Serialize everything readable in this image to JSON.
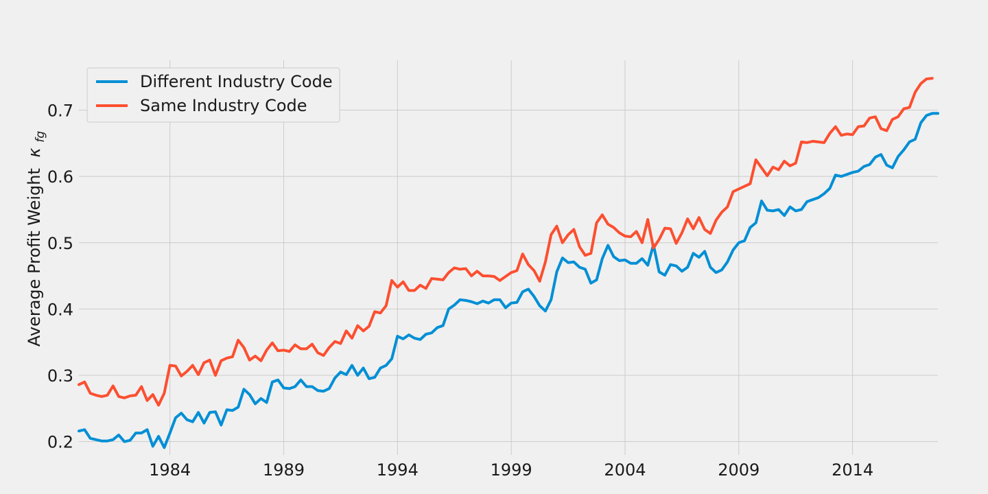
{
  "chart_data": {
    "type": "line",
    "title": "",
    "xlabel": "",
    "ylabel": "Average Profit Weight",
    "ylabel_symbol": "κ",
    "ylabel_subscript": "fg",
    "xlim": [
      1980.0,
      2017.75
    ],
    "ylim": [
      0.18,
      0.775
    ],
    "xticks": [
      1984,
      1989,
      1994,
      1999,
      2004,
      2009,
      2014
    ],
    "yticks": [
      0.2,
      0.3,
      0.4,
      0.5,
      0.6,
      0.7
    ],
    "grid": true,
    "legend_position": "top-left",
    "x_frequency": "quarterly",
    "x_start": "1980Q1",
    "series": [
      {
        "name": "Different Industry Code",
        "color": "#008fd5",
        "values": [
          0.216,
          0.218,
          0.205,
          0.203,
          0.201,
          0.201,
          0.203,
          0.21,
          0.2,
          0.202,
          0.213,
          0.213,
          0.218,
          0.193,
          0.208,
          0.191,
          0.213,
          0.236,
          0.243,
          0.233,
          0.23,
          0.244,
          0.228,
          0.244,
          0.245,
          0.225,
          0.248,
          0.247,
          0.252,
          0.279,
          0.271,
          0.257,
          0.265,
          0.259,
          0.29,
          0.293,
          0.281,
          0.28,
          0.283,
          0.293,
          0.283,
          0.283,
          0.277,
          0.276,
          0.28,
          0.296,
          0.305,
          0.301,
          0.315,
          0.3,
          0.311,
          0.295,
          0.297,
          0.311,
          0.315,
          0.325,
          0.359,
          0.355,
          0.361,
          0.356,
          0.354,
          0.362,
          0.364,
          0.372,
          0.375,
          0.4,
          0.406,
          0.414,
          0.413,
          0.411,
          0.408,
          0.412,
          0.409,
          0.414,
          0.414,
          0.402,
          0.409,
          0.41,
          0.426,
          0.43,
          0.419,
          0.405,
          0.397,
          0.414,
          0.456,
          0.477,
          0.47,
          0.471,
          0.463,
          0.46,
          0.439,
          0.444,
          0.476,
          0.496,
          0.479,
          0.473,
          0.474,
          0.469,
          0.469,
          0.476,
          0.466,
          0.497,
          0.456,
          0.451,
          0.467,
          0.465,
          0.457,
          0.463,
          0.484,
          0.478,
          0.487,
          0.463,
          0.455,
          0.459,
          0.471,
          0.489,
          0.5,
          0.503,
          0.523,
          0.53,
          0.563,
          0.549,
          0.548,
          0.55,
          0.541,
          0.554,
          0.548,
          0.55,
          0.562,
          0.565,
          0.568,
          0.574,
          0.582,
          0.602,
          0.6,
          0.603,
          0.606,
          0.608,
          0.615,
          0.618,
          0.629,
          0.633,
          0.617,
          0.613,
          0.63,
          0.64,
          0.652,
          0.656,
          0.681,
          0.692,
          0.695,
          0.695
        ]
      },
      {
        "name": "Same Industry Code",
        "color": "#fc4f30",
        "values": [
          0.286,
          0.29,
          0.273,
          0.27,
          0.268,
          0.27,
          0.284,
          0.268,
          0.266,
          0.269,
          0.27,
          0.283,
          0.262,
          0.271,
          0.255,
          0.273,
          0.315,
          0.314,
          0.299,
          0.306,
          0.315,
          0.301,
          0.319,
          0.323,
          0.3,
          0.322,
          0.326,
          0.328,
          0.353,
          0.342,
          0.323,
          0.329,
          0.322,
          0.338,
          0.349,
          0.337,
          0.338,
          0.336,
          0.346,
          0.34,
          0.34,
          0.347,
          0.334,
          0.33,
          0.342,
          0.351,
          0.348,
          0.367,
          0.356,
          0.375,
          0.367,
          0.374,
          0.396,
          0.394,
          0.405,
          0.443,
          0.433,
          0.441,
          0.428,
          0.428,
          0.436,
          0.431,
          0.446,
          0.445,
          0.444,
          0.455,
          0.462,
          0.46,
          0.461,
          0.45,
          0.457,
          0.45,
          0.45,
          0.449,
          0.443,
          0.449,
          0.455,
          0.458,
          0.483,
          0.467,
          0.458,
          0.442,
          0.471,
          0.512,
          0.525,
          0.5,
          0.512,
          0.52,
          0.494,
          0.481,
          0.484,
          0.53,
          0.542,
          0.528,
          0.523,
          0.515,
          0.51,
          0.509,
          0.517,
          0.5,
          0.535,
          0.492,
          0.505,
          0.522,
          0.521,
          0.499,
          0.515,
          0.536,
          0.521,
          0.538,
          0.52,
          0.514,
          0.534,
          0.546,
          0.554,
          0.577,
          0.581,
          0.585,
          0.589,
          0.625,
          0.613,
          0.601,
          0.614,
          0.61,
          0.623,
          0.616,
          0.62,
          0.652,
          0.651,
          0.653,
          0.652,
          0.651,
          0.665,
          0.675,
          0.662,
          0.664,
          0.663,
          0.675,
          0.676,
          0.688,
          0.69,
          0.672,
          0.669,
          0.686,
          0.69,
          0.702,
          0.704,
          0.727,
          0.74,
          0.747,
          0.748
        ]
      }
    ]
  }
}
